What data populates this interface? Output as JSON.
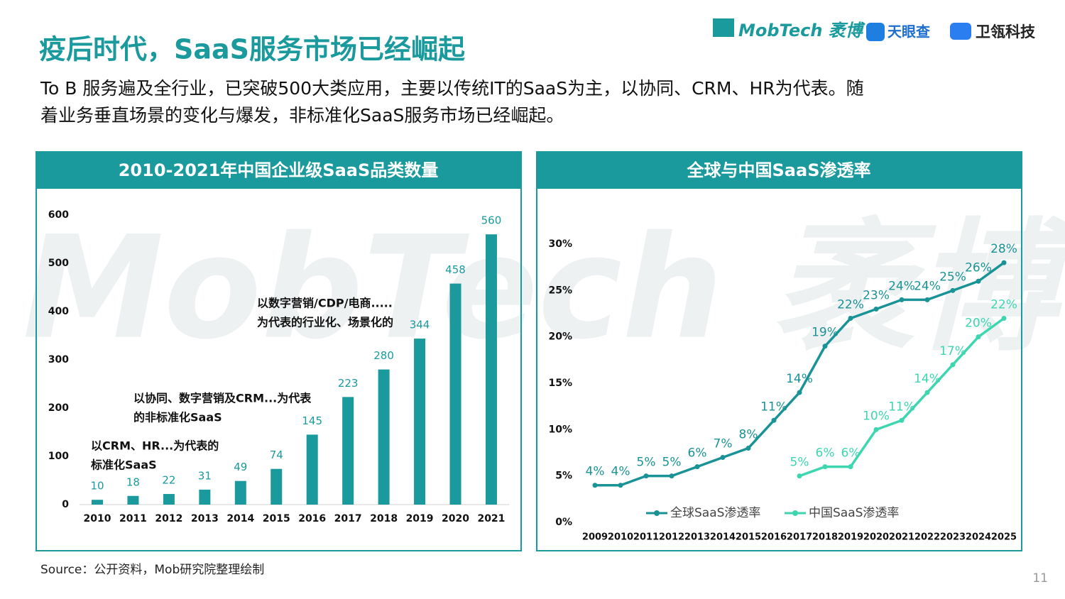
{
  "title": "疫后时代，SaaS服务市场已经崛起",
  "subtitle": [
    "To  B  服务遍及全行业，已突破500大类应用，主要以传统IT的SaaS为主，以协同、CRM、HR为代表。随",
    "着业务垂直场景的变化与爆发，非标准化SaaS服务市场已经崛起。"
  ],
  "logos": [
    "MobTech 袤博",
    "天眼查",
    "卫瓴科技"
  ],
  "watermark": "MobTech 袤博",
  "source": "Source：公开资料，Mob研究院整理绘制",
  "page_number": "11",
  "chart_data": [
    {
      "type": "bar",
      "title": "2010-2021年中国企业级SaaS品类数量",
      "categories": [
        "2010",
        "2011",
        "2012",
        "2013",
        "2014",
        "2015",
        "2016",
        "2017",
        "2018",
        "2019",
        "2020",
        "2021"
      ],
      "values": [
        10,
        18,
        22,
        31,
        49,
        74,
        145,
        223,
        280,
        344,
        458,
        560
      ],
      "color": "#1a9a9c",
      "ylim": [
        0,
        600
      ],
      "yticks": [
        0,
        100,
        200,
        300,
        400,
        500,
        600
      ],
      "grid": false,
      "annotations": [
        [
          "以CRM、HR...为代表的",
          "标准化SaaS"
        ],
        [
          "以协同、数字营销及CRM...为代表",
          "的非标准化SaaS"
        ],
        [
          "以数字营销/CDP/电商.....",
          "为代表的行业化、场景化的"
        ]
      ]
    },
    {
      "type": "line",
      "title": "全球与中国SaaS渗透率",
      "categories": [
        "2009",
        "2010",
        "2011",
        "2012",
        "2013",
        "2014",
        "2015",
        "2016",
        "2017",
        "2018",
        "2019",
        "2020",
        "2021",
        "2022",
        "2023",
        "2024",
        "2025"
      ],
      "series": [
        {
          "name": "全球SaaS渗透率",
          "color": "#1a9396",
          "values": [
            4,
            4,
            5,
            5,
            6,
            7,
            8,
            11,
            14,
            19,
            22,
            23,
            24,
            24,
            25,
            26,
            28
          ],
          "value_labels": [
            "4%",
            "4%",
            "5%",
            "5%",
            "6%",
            "7%",
            "8%",
            "11%",
            "14%",
            "19%",
            "22%",
            "23%",
            "24%",
            "24%",
            "25%",
            "26%",
            "28%"
          ]
        },
        {
          "name": "中国SaaS渗透率",
          "color": "#3dd6b0",
          "values": [
            null,
            null,
            null,
            null,
            null,
            null,
            null,
            null,
            5,
            6,
            6,
            10,
            11,
            14,
            17,
            20,
            22
          ],
          "value_labels": [
            null,
            null,
            null,
            null,
            null,
            null,
            null,
            null,
            "5%",
            "6%",
            "6%",
            "10%",
            "11%",
            "14%",
            "17%",
            "20%",
            "22%"
          ]
        }
      ],
      "ylim": [
        0,
        30
      ],
      "yticks": [
        {
          "value": 0,
          "label": "0%"
        },
        {
          "value": 5,
          "label": "5%"
        },
        {
          "value": 10,
          "label": "10%"
        },
        {
          "value": 15,
          "label": "15%"
        },
        {
          "value": 20,
          "label": "20%"
        },
        {
          "value": 25,
          "label": "25%"
        },
        {
          "value": 30,
          "label": "30%"
        }
      ],
      "grid": false,
      "legend": "bottom"
    }
  ]
}
